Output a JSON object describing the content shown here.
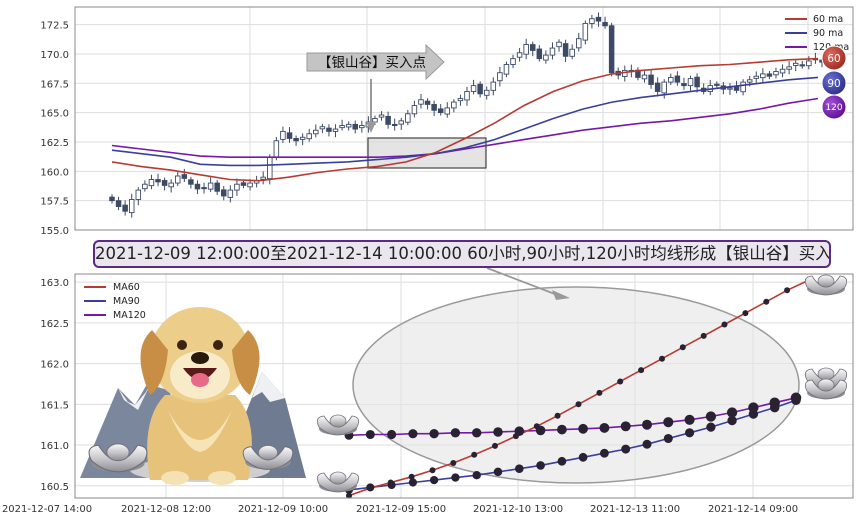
{
  "banner_text": "2021-12-09 12:00:00至2021-12-14 10:00:00 60小时,90小时,120小时均线形成【银山谷】买入点",
  "arrow_label": "【银山谷】买入点",
  "colors": {
    "ma60": "#b83a32",
    "ma90": "#3a3f9a",
    "ma120": "#7419a8",
    "candle": "#3c4a66"
  },
  "chart_data": [
    {
      "type": "candlestick",
      "ylim": [
        155.0,
        174.0
      ],
      "yticks": [
        "155.0",
        "157.5",
        "160.0",
        "162.5",
        "165.0",
        "167.5",
        "170.0",
        "172.5"
      ],
      "legend": [
        {
          "name": "60 ma",
          "badge": "60"
        },
        {
          "name": "90 ma",
          "badge": "90"
        },
        {
          "name": "120 ma",
          "badge": "120"
        }
      ],
      "legend_position": "top-right",
      "highlight_range": [
        160.4,
        163.0
      ],
      "close_path": [
        157.5,
        157.0,
        156.6,
        157.6,
        158.4,
        158.9,
        159.3,
        159.1,
        158.8,
        159.0,
        159.6,
        159.4,
        158.9,
        158.5,
        158.6,
        159.0,
        158.3,
        157.9,
        158.4,
        158.9,
        158.8,
        159.0,
        159.2,
        159.5,
        161.2,
        162.6,
        163.4,
        162.8,
        162.6,
        162.9,
        163.2,
        163.5,
        163.8,
        163.4,
        163.6,
        163.9,
        164.0,
        163.6,
        163.9,
        164.2,
        164.5,
        164.8,
        164.0,
        163.9,
        164.3,
        164.9,
        165.6,
        166.1,
        165.7,
        165.2,
        165.0,
        165.4,
        165.9,
        166.2,
        166.8,
        167.3,
        166.6,
        166.9,
        167.6,
        168.4,
        169.1,
        169.6,
        170.1,
        170.8,
        170.3,
        169.6,
        169.9,
        170.5,
        171.0,
        169.8,
        170.4,
        171.3,
        172.6,
        173.0,
        172.8,
        172.4,
        168.4,
        168.2,
        168.6,
        168.5,
        168.0,
        168.2,
        167.4,
        166.8,
        167.6,
        168.0,
        167.6,
        167.3,
        167.9,
        167.2,
        166.8,
        167.3,
        167.4,
        167.0,
        167.1,
        166.9,
        167.6,
        167.8,
        168.1,
        168.3,
        168.1,
        168.5,
        168.7,
        168.9,
        169.2,
        169.0,
        169.4,
        169.6,
        169.3
      ],
      "ma60": [
        160.8,
        160.4,
        160.1,
        159.7,
        159.3,
        159.2,
        159.5,
        159.9,
        160.2,
        160.4,
        160.8,
        161.6,
        162.8,
        164.1,
        165.6,
        166.8,
        167.7,
        168.3,
        168.6,
        168.8,
        169.0,
        169.1,
        169.3,
        169.5,
        169.6
      ],
      "ma90": [
        161.8,
        161.5,
        161.2,
        160.6,
        160.5,
        160.5,
        160.6,
        160.7,
        160.8,
        161.0,
        161.2,
        161.5,
        162.0,
        162.7,
        163.6,
        164.5,
        165.3,
        165.9,
        166.3,
        166.6,
        166.9,
        167.2,
        167.5,
        167.8,
        168.0
      ],
      "ma120": [
        162.2,
        161.9,
        161.6,
        161.3,
        161.2,
        161.2,
        161.2,
        161.2,
        161.2,
        161.2,
        161.3,
        161.5,
        161.9,
        162.3,
        162.7,
        163.1,
        163.5,
        163.8,
        164.1,
        164.3,
        164.6,
        164.9,
        165.3,
        165.8,
        166.2
      ]
    },
    {
      "type": "line",
      "ylim": [
        160.35,
        163.1
      ],
      "yticks": [
        "160.5",
        "161.0",
        "161.5",
        "162.0",
        "162.5",
        "163.0"
      ],
      "xticks": [
        "2021-12-07 14:00",
        "2021-12-08 12:00",
        "2021-12-09 10:00",
        "2021-12-09 15:00",
        "2021-12-10 13:00",
        "2021-12-13 11:00",
        "2021-12-14 09:00"
      ],
      "legend_position": "top-left",
      "series": [
        {
          "name": "MA60",
          "values": [
            160.38,
            160.47,
            160.54,
            160.61,
            160.69,
            160.78,
            160.88,
            160.99,
            161.11,
            161.23,
            161.36,
            161.5,
            161.64,
            161.78,
            161.92,
            162.06,
            162.2,
            162.34,
            162.48,
            162.62,
            162.76,
            162.9,
            163.02
          ]
        },
        {
          "name": "MA90",
          "values": [
            160.45,
            160.48,
            160.51,
            160.54,
            160.57,
            160.6,
            160.63,
            160.67,
            160.71,
            160.75,
            160.8,
            160.85,
            160.9,
            160.95,
            161.01,
            161.08,
            161.15,
            161.22,
            161.3,
            161.38,
            161.46,
            161.55
          ]
        },
        {
          "name": "MA120",
          "values": [
            161.12,
            161.13,
            161.13,
            161.14,
            161.14,
            161.15,
            161.15,
            161.16,
            161.17,
            161.18,
            161.19,
            161.2,
            161.21,
            161.23,
            161.25,
            161.28,
            161.31,
            161.35,
            161.4,
            161.46,
            161.52,
            161.58
          ]
        }
      ]
    }
  ]
}
